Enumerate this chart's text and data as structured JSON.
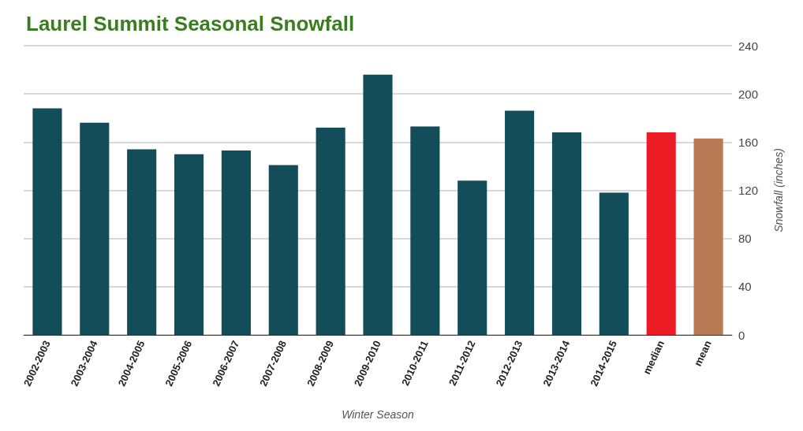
{
  "chart_data": {
    "type": "bar",
    "title": "Laurel Summit Seasonal Snowfall",
    "xlabel": "Winter Season",
    "ylabel": "Snowfall (inches)",
    "categories": [
      "2002-2003",
      "2003-2004",
      "2004-2005",
      "2005-2006",
      "2006-2007",
      "2007-2008",
      "2008-2009",
      "2009-2010",
      "2010-2011",
      "2011-2012",
      "2012-2013",
      "2013-2014",
      "2014-2015",
      "median",
      "mean"
    ],
    "values": [
      188,
      176,
      154,
      150,
      153,
      141,
      172,
      216,
      173,
      128,
      186,
      168,
      118,
      168,
      163
    ],
    "colors": [
      "#144d5a",
      "#144d5a",
      "#144d5a",
      "#144d5a",
      "#144d5a",
      "#144d5a",
      "#144d5a",
      "#144d5a",
      "#144d5a",
      "#144d5a",
      "#144d5a",
      "#144d5a",
      "#144d5a",
      "#ec1c24",
      "#b87a55"
    ],
    "ylim": [
      0,
      240
    ],
    "yticks": [
      0,
      40,
      80,
      120,
      160,
      200,
      240
    ],
    "grid": "y"
  }
}
